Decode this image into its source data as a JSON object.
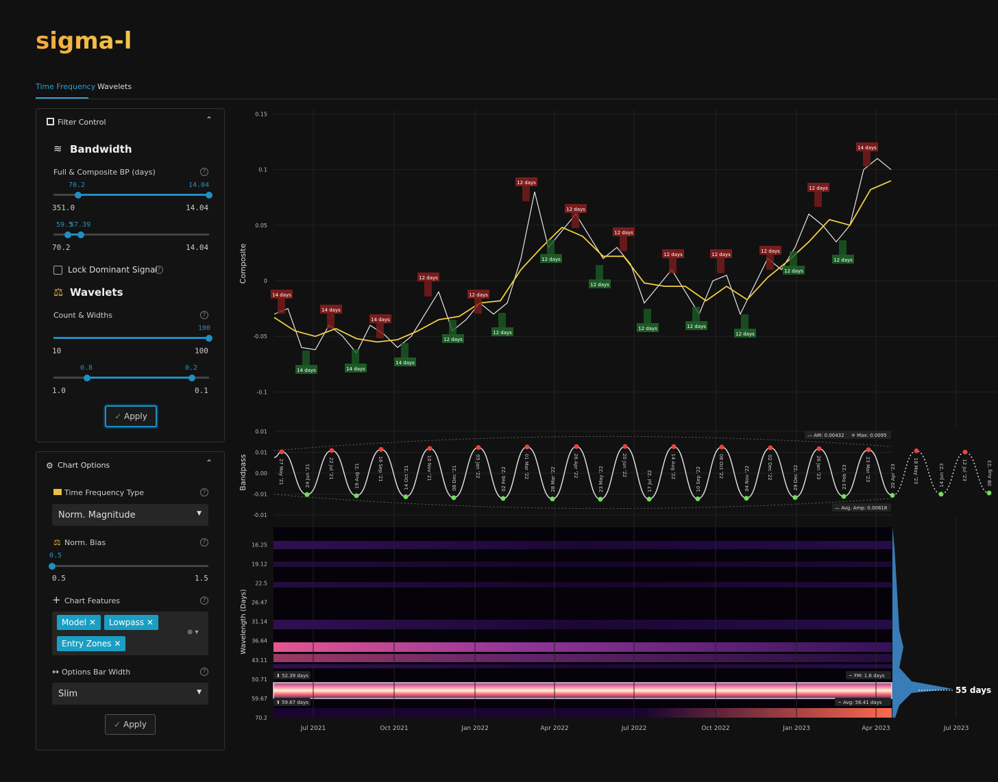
{
  "header": {
    "logo": "sigma-l"
  },
  "tabs": [
    "Time Frequency",
    "Wavelets"
  ],
  "filter_control": {
    "title": "Filter Control",
    "bandwidth": {
      "title": "Bandwidth",
      "label": "Full & Composite BP (days)",
      "slider1": {
        "handles": [
          "70.2",
          "14.04"
        ],
        "min": "351.0",
        "max": "14.04"
      },
      "slider2": {
        "handles": [
          "59.5",
          "57.39"
        ],
        "min": "70.2",
        "max": "14.04"
      }
    },
    "lock": "Lock Dominant Signal",
    "wavelets": {
      "title": "Wavelets",
      "label": "Count & Widths",
      "count": {
        "handles": [
          "100"
        ],
        "min": "10",
        "max": "100"
      },
      "widths": {
        "handles": [
          "0.8",
          "0.2"
        ],
        "min": "1.0",
        "max": "0.1"
      }
    },
    "apply": "Apply"
  },
  "chart_options": {
    "title": "Chart Options",
    "tf_type": {
      "label": "Time Frequency Type",
      "value": "Norm. Magnitude"
    },
    "bias": {
      "label": "Norm. Bias",
      "handle": "0.5",
      "min": "0.5",
      "max": "1.5"
    },
    "features": {
      "label": "Chart Features",
      "chips": [
        "Model",
        "Lowpass",
        "Entry Zones"
      ]
    },
    "bar_width": {
      "label": "Options Bar Width",
      "value": "Slim"
    },
    "apply": "Apply"
  },
  "composite": {
    "ylabel": "Composite",
    "ylim": [
      -0.117,
      0.154
    ],
    "yticks": [
      0.15,
      0.1,
      0.05,
      0,
      -0.05,
      -0.1
    ],
    "signal": [
      -0.03,
      -0.025,
      -0.06,
      -0.062,
      -0.04,
      -0.05,
      -0.065,
      -0.04,
      -0.048,
      -0.06,
      -0.05,
      -0.03,
      -0.01,
      -0.045,
      -0.035,
      -0.02,
      -0.03,
      -0.02,
      0.02,
      0.08,
      0.03,
      0.045,
      0.06,
      0.04,
      0.02,
      0.03,
      0.015,
      -0.02,
      -0.005,
      0.01,
      -0.01,
      -0.03,
      0,
      0.005,
      -0.03,
      -0.005,
      0.02,
      0.01,
      0.03,
      0.06,
      0.05,
      0.035,
      0.05,
      0.1,
      0.11,
      0.1
    ],
    "lowpass": [
      -0.033,
      -0.045,
      -0.05,
      -0.043,
      -0.052,
      -0.055,
      -0.053,
      -0.045,
      -0.035,
      -0.032,
      -0.02,
      -0.018,
      0.01,
      0.03,
      0.048,
      0.04,
      0.022,
      0.022,
      -0.002,
      -0.005,
      -0.005,
      -0.018,
      -0.005,
      -0.017,
      0.003,
      0.018,
      0.035,
      0.055,
      0.05,
      0.082,
      0.09
    ],
    "peak_labels": [
      "14 days",
      "14 days",
      "14 days",
      "12 days",
      "12 days",
      "12 days",
      "12 days",
      "12 days",
      "12 days",
      "12 days",
      "12 days",
      "12 days",
      "14 days"
    ],
    "trough_labels": [
      "14 days",
      "14 days",
      "14 days",
      "12 days",
      "12 days",
      "12 days",
      "12 days",
      "12 days",
      "12 days",
      "12 days",
      "12 days",
      "12 days"
    ]
  },
  "bandpass": {
    "ylabel": "Bandpass",
    "ylim": [
      -0.0125,
      0.0125
    ],
    "yticks": [
      {
        "value": 0.0125,
        "label": "0.01"
      },
      {
        "value": 0.00625,
        "label": "0.01"
      },
      {
        "value": 0,
        "label": "0.00"
      },
      {
        "value": -0.00625,
        "label": "-0.01"
      },
      {
        "value": -0.0125,
        "label": "-0.01"
      }
    ],
    "peaks": [
      "27 May '21",
      "22 Jul '21",
      "16 Sep '21",
      "10 Nov '21",
      "05 Jan '22",
      "01 Mar '22",
      "26 Apr '22",
      "20 Jun '22",
      "14 Aug '22",
      "08 Oct '22",
      "02 Dec '22",
      "26 Jan '23",
      "23 Mar '23",
      "18 May '23",
      "12 Jul '23"
    ],
    "troughs": [
      "24 Jun '21",
      "19 Aug '21",
      "14 Oct '21",
      "08 Dec '21",
      "02 Feb '22",
      "28 Mar '22",
      "23 May '22",
      "17 Jul '22",
      "10 Sep '22",
      "04 Nov '22",
      "29 Dec '22",
      "23 Feb '23",
      "20 Apr '23",
      "14 Jun '23",
      "08 Aug '23"
    ],
    "am": "AM: 0.00432",
    "max": "Max: 0.0095",
    "avg": "Avg. Amp: 0.00818"
  },
  "wavelength": {
    "ylabel": "Wavelength (Days)",
    "log": true,
    "ylim": [
      14.04,
      70.2
    ],
    "yticks": [
      16.25,
      19.12,
      22.5,
      26.47,
      31.14,
      36.64,
      43.11,
      50.71,
      59.67,
      70.2
    ],
    "lower": "52.39 days",
    "upper": "59.67 days",
    "fm": "FM: 1.6 days",
    "avg": "Avg: 56.41 days",
    "dominant": "55 days"
  },
  "xticks": [
    "Jul 2021",
    "Oct 2021",
    "Jan 2022",
    "Apr 2022",
    "Jul 2022",
    "Oct 2022",
    "Jan 2023",
    "Apr 2023",
    "Jul 2023"
  ]
}
